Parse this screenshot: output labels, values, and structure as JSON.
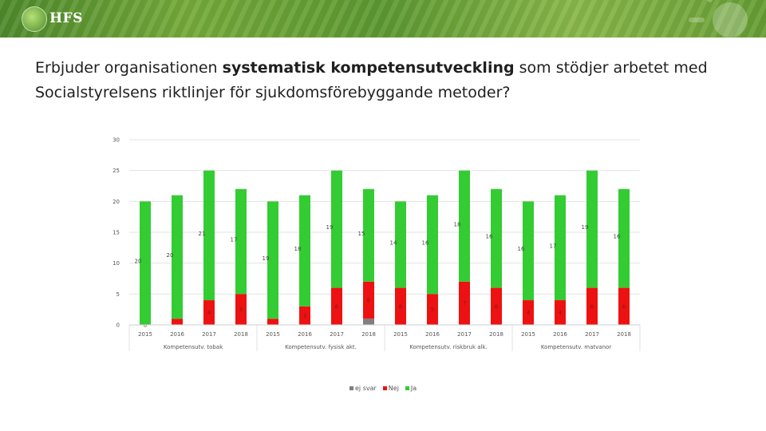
{
  "header": {
    "logo_text": "HFS"
  },
  "title": {
    "line1_prefix": "Erbjuder organisationen ",
    "line1_bold": "systematisk kompetensutveckling",
    "line1_suffix": " som stödjer arbetet med",
    "line2": "Socialstyrelsens riktlinjer för sjukdomsförebyggande metoder?"
  },
  "chart_data": {
    "type": "bar",
    "stacked": true,
    "ylim": [
      0,
      30
    ],
    "yticks": [
      0,
      5,
      10,
      15,
      20,
      25,
      30
    ],
    "grid": true,
    "legend_position": "bottom",
    "groups": [
      {
        "label": "Kompetensutv. tobak",
        "years": [
          "2015",
          "2016",
          "2017",
          "2018"
        ]
      },
      {
        "label": "Kompetensutv. fysisk akt.",
        "years": [
          "2015",
          "2016",
          "2017",
          "2018"
        ]
      },
      {
        "label": "Kompetensutv. riskbruk alk.",
        "years": [
          "2015",
          "2016",
          "2017",
          "2018"
        ]
      },
      {
        "label": "Kompetensutv. matvanor",
        "years": [
          "2015",
          "2016",
          "2017",
          "2018"
        ]
      }
    ],
    "series": [
      {
        "name": "ej svar",
        "color": "#7f7f7f",
        "values": [
          0,
          0,
          0,
          0,
          0,
          0,
          0,
          1,
          0,
          0,
          0,
          0,
          0,
          0,
          0,
          0
        ]
      },
      {
        "name": "Nej",
        "color": "#ee1111",
        "values": [
          0,
          1,
          4,
          5,
          1,
          3,
          6,
          6,
          6,
          5,
          7,
          6,
          4,
          4,
          6,
          6
        ]
      },
      {
        "name": "Ja",
        "color": "#33cc33",
        "values": [
          20,
          20,
          21,
          17,
          19,
          18,
          19,
          15,
          14,
          16,
          18,
          16,
          16,
          17,
          19,
          16
        ]
      }
    ],
    "data_labels": {
      "Nej": [
        "0",
        "",
        "4",
        "5",
        "",
        "3",
        "6",
        "6",
        "6",
        "5",
        "7",
        "6",
        "4",
        "4",
        "6",
        "6"
      ],
      "Ja": [
        "20",
        "20",
        "21",
        "17",
        "19",
        "18",
        "19",
        "15",
        "14",
        "16",
        "18",
        "16",
        "16",
        "17",
        "19",
        "16"
      ]
    }
  }
}
